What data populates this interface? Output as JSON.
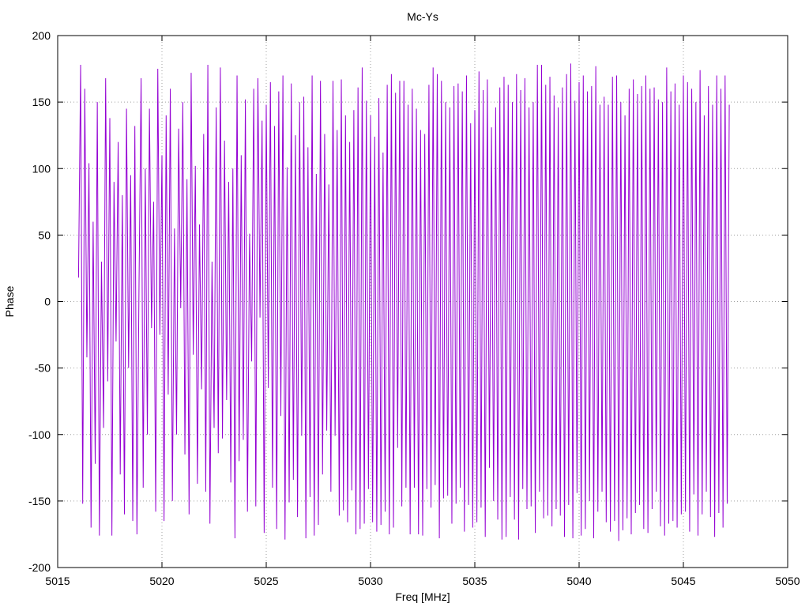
{
  "chart_data": {
    "type": "line",
    "title": "Mc-Ys",
    "xlabel": "Freq [MHz]",
    "ylabel": "Phase",
    "xlim": [
      5015,
      5050
    ],
    "ylim": [
      -200,
      200
    ],
    "x_ticks": [
      5015,
      5020,
      5025,
      5030,
      5035,
      5040,
      5045,
      5050
    ],
    "y_ticks": [
      -200,
      -150,
      -100,
      -50,
      0,
      50,
      100,
      150,
      200
    ],
    "grid": true,
    "legend": "none",
    "series": [
      {
        "color": "#9400d3",
        "x_start": 5016.0,
        "x_step": 0.1,
        "values": [
          18,
          178,
          -152,
          160,
          -42,
          104,
          -170,
          60,
          -122,
          150,
          -176,
          30,
          -95,
          168,
          -60,
          138,
          -176,
          90,
          -30,
          120,
          -130,
          80,
          -160,
          145,
          -50,
          95,
          -165,
          132,
          -175,
          12,
          168,
          -140,
          100,
          -100,
          145,
          -20,
          75,
          -158,
          175,
          -25,
          110,
          -165,
          140,
          -70,
          160,
          -150,
          55,
          -100,
          130,
          -5,
          150,
          -115,
          92,
          -160,
          172,
          -40,
          102,
          -137,
          58,
          -66,
          126,
          -143,
          178,
          -167,
          30,
          -95,
          146,
          -114,
          176,
          -103,
          121,
          -74,
          90,
          -136,
          100,
          -178,
          170,
          -120,
          110,
          -104,
          152,
          -158,
          51,
          -45,
          160,
          -154,
          168,
          -12,
          136,
          -174,
          148,
          -65,
          165,
          -140,
          132,
          -171,
          158,
          -86,
          170,
          -179,
          101,
          -151,
          164,
          -134,
          125,
          -162,
          150,
          -101,
          154,
          -178,
          116,
          -147,
          170,
          -176,
          96,
          -168,
          166,
          -130,
          126,
          -97,
          88,
          -143,
          166,
          -101,
          129,
          -161,
          167,
          -157,
          140,
          -166,
          120,
          -142,
          144,
          -175,
          161,
          -171,
          176,
          -167,
          151,
          -141,
          140,
          -166,
          124,
          -173,
          153,
          -168,
          112,
          -158,
          163,
          -175,
          171,
          -170,
          157,
          -110,
          166,
          -154,
          166,
          -140,
          148,
          -175,
          160,
          -140,
          145,
          -175,
          129,
          -176,
          126,
          -141,
          163,
          -155,
          176,
          -138,
          171,
          -178,
          166,
          -148,
          150,
          -146,
          146,
          -167,
          162,
          -152,
          164,
          -140,
          158,
          -173,
          170,
          -153,
          134,
          -170,
          144,
          -166,
          173,
          -155,
          159,
          -177,
          167,
          -125,
          131,
          -150,
          146,
          -164,
          161,
          -179,
          169,
          -177,
          163,
          -147,
          150,
          -164,
          171,
          -179,
          159,
          -141,
          168,
          -156,
          146,
          -154,
          150,
          -174,
          178,
          -143,
          178,
          -163,
          163,
          -161,
          169,
          -169,
          155,
          -156,
          146,
          -161,
          161,
          -177,
          171,
          -153,
          179,
          -178,
          151,
          -144,
          165,
          -176,
          170,
          -171,
          158,
          -150,
          162,
          -178,
          177,
          -158,
          148,
          -143,
          154,
          -166,
          148,
          -173,
          169,
          -165,
          170,
          -180,
          150,
          -172,
          140,
          -163,
          160,
          -175,
          167,
          -159,
          156,
          -153,
          162,
          -171,
          170,
          -174,
          160,
          -156,
          161,
          -143,
          152,
          -169,
          150,
          -176,
          176,
          -167,
          158,
          -165,
          164,
          -170,
          148,
          -160,
          170,
          -158,
          165,
          -173,
          160,
          -145,
          150,
          -176,
          174,
          -160,
          140,
          -143,
          162,
          -162,
          148,
          -177,
          170,
          -159,
          160,
          -170,
          170,
          -152,
          148
        ]
      }
    ]
  }
}
